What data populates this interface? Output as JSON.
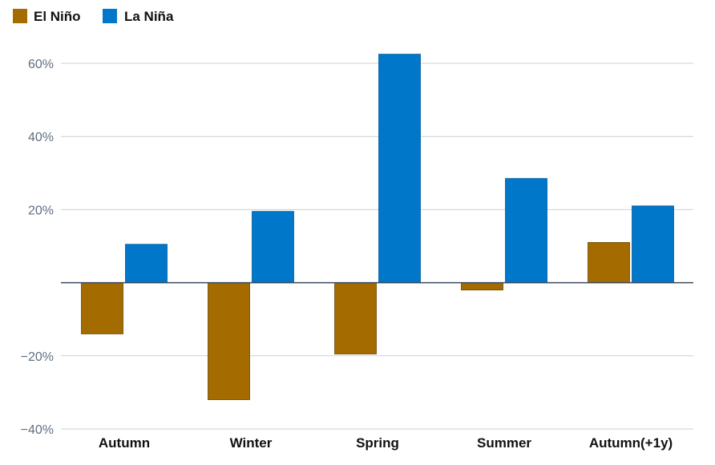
{
  "chart_data": {
    "type": "bar",
    "categories": [
      "Autumn",
      "Winter",
      "Spring",
      "Summer",
      "Autumn(+1y)"
    ],
    "series": [
      {
        "name": "El Niño",
        "color": "#a36b00",
        "values": [
          -14,
          -32,
          -19.5,
          -2,
          11
        ]
      },
      {
        "name": "La Niña",
        "color": "#0077c8",
        "values": [
          10.5,
          19.5,
          62.5,
          28.5,
          21
        ]
      }
    ],
    "yticks": [
      60,
      40,
      20,
      -20,
      -40
    ],
    "ytick_labels": [
      "60%",
      "40%",
      "20%",
      "−20%",
      "−40%"
    ],
    "ylim": [
      -40,
      60
    ],
    "grid": true,
    "legend_position": "top-left"
  }
}
